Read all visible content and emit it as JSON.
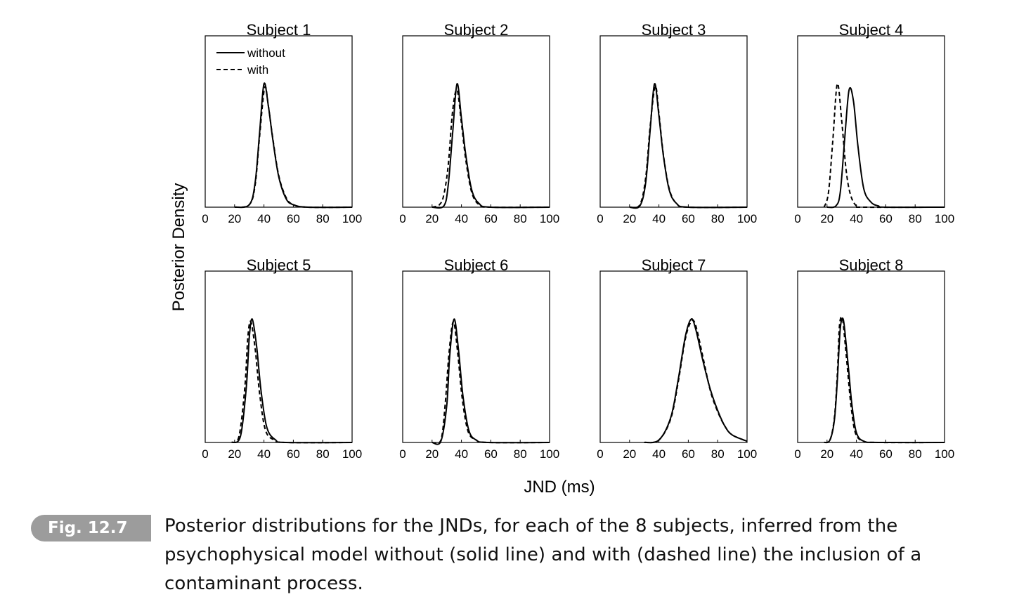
{
  "figure": {
    "ylabel": "Posterior Density",
    "xlabel": "JND (ms)"
  },
  "caption": {
    "tag": "Fig. 12.7",
    "text": "Posterior distributions for the JNDs, for each of the 8 subjects, inferred from the psychophysical model without (solid line) and with (dashed line) the inclusion of a contaminant process."
  },
  "colors": {
    "line": "#000000",
    "axis": "#000000",
    "tag_bg": "#9c9c9c"
  },
  "chart_data": {
    "type": "line",
    "xlim": [
      0,
      100
    ],
    "xticks": [
      0,
      20,
      40,
      60,
      80,
      100
    ],
    "grid": false,
    "legend": {
      "placement": "top-left",
      "panel": 0,
      "entries": [
        {
          "label": "without",
          "style": "solid"
        },
        {
          "label": "with",
          "style": "dashed"
        }
      ]
    },
    "series_styles": {
      "without": "solid",
      "with": "dashed"
    },
    "panels": [
      {
        "title": "Subject 1",
        "without": {
          "x": [
            20,
            30,
            34,
            37,
            40,
            43,
            46,
            50,
            55,
            60,
            70,
            100
          ],
          "y": [
            0,
            0.02,
            0.2,
            0.6,
            1.0,
            0.82,
            0.55,
            0.25,
            0.07,
            0.02,
            0,
            0
          ]
        },
        "with": {
          "x": [
            20,
            30,
            34,
            37,
            40.5,
            43,
            46,
            50,
            55,
            60,
            70,
            100
          ],
          "y": [
            0,
            0.02,
            0.18,
            0.57,
            0.97,
            0.82,
            0.56,
            0.26,
            0.08,
            0.02,
            0,
            0
          ]
        }
      },
      {
        "title": "Subject 2",
        "without": {
          "x": [
            20,
            28,
            31,
            34,
            37,
            40,
            43,
            47,
            52,
            60,
            100
          ],
          "y": [
            0,
            0.01,
            0.18,
            0.6,
            1.0,
            0.72,
            0.42,
            0.14,
            0.03,
            0,
            0
          ]
        },
        "with": {
          "x": [
            20,
            25,
            28,
            31,
            34,
            37,
            40,
            43,
            47,
            52,
            60,
            100
          ],
          "y": [
            0,
            0.02,
            0.1,
            0.34,
            0.78,
            0.95,
            0.68,
            0.38,
            0.12,
            0.02,
            0,
            0
          ]
        }
      },
      {
        "title": "Subject 3",
        "without": {
          "x": [
            20,
            27,
            31,
            34,
            37,
            40,
            43,
            47,
            52,
            60,
            100
          ],
          "y": [
            0,
            0.01,
            0.2,
            0.62,
            1.0,
            0.74,
            0.42,
            0.14,
            0.03,
            0,
            0
          ]
        },
        "with": {
          "x": [
            20,
            27,
            31,
            34,
            37.5,
            40,
            43,
            47,
            52,
            60,
            100
          ],
          "y": [
            0,
            0.02,
            0.24,
            0.65,
            0.98,
            0.76,
            0.43,
            0.15,
            0.03,
            0,
            0
          ]
        }
      },
      {
        "title": "Subject 4",
        "without": {
          "x": [
            20,
            26,
            29,
            32,
            35,
            38,
            41,
            45,
            50,
            55,
            60,
            100
          ],
          "y": [
            0,
            0.01,
            0.12,
            0.55,
            0.95,
            0.86,
            0.5,
            0.15,
            0.04,
            0.01,
            0,
            0
          ]
        },
        "with": {
          "x": [
            18,
            21,
            24,
            27,
            30,
            33,
            36,
            40,
            45,
            100
          ],
          "y": [
            0,
            0.12,
            0.55,
            1.0,
            0.7,
            0.3,
            0.1,
            0.01,
            0,
            0
          ]
        }
      },
      {
        "title": "Subject 5",
        "without": {
          "x": [
            18,
            24,
            28,
            30,
            32,
            35,
            38,
            42,
            48,
            55,
            100
          ],
          "y": [
            0,
            0.05,
            0.45,
            0.85,
            1.0,
            0.78,
            0.42,
            0.12,
            0.02,
            0,
            0
          ]
        },
        "with": {
          "x": [
            18,
            23,
            27,
            29,
            31,
            34,
            37,
            41,
            47,
            55,
            100
          ],
          "y": [
            0,
            0.05,
            0.45,
            0.85,
            0.98,
            0.76,
            0.4,
            0.1,
            0.02,
            0,
            0
          ]
        }
      },
      {
        "title": "Subject 6",
        "without": {
          "x": [
            20,
            26,
            30,
            32,
            35,
            38,
            41,
            45,
            50,
            58,
            100
          ],
          "y": [
            0,
            0.01,
            0.3,
            0.7,
            1.0,
            0.75,
            0.38,
            0.1,
            0.02,
            0,
            0
          ]
        },
        "with": {
          "x": [
            20,
            26,
            29,
            31.5,
            34.5,
            37.5,
            40.5,
            44.5,
            50,
            58,
            100
          ],
          "y": [
            0,
            0.02,
            0.32,
            0.72,
            0.98,
            0.72,
            0.36,
            0.09,
            0.02,
            0,
            0
          ]
        }
      },
      {
        "title": "Subject 7",
        "without": {
          "x": [
            30,
            40,
            48,
            53,
            58,
            62,
            65,
            70,
            75,
            80,
            85,
            90,
            100
          ],
          "y": [
            0,
            0.02,
            0.2,
            0.5,
            0.86,
            1.0,
            0.92,
            0.66,
            0.43,
            0.26,
            0.13,
            0.06,
            0.01
          ]
        },
        "with": {
          "x": [
            30,
            40,
            48,
            53,
            58,
            62,
            65,
            70,
            75,
            80,
            85,
            90,
            100
          ],
          "y": [
            0,
            0.02,
            0.19,
            0.48,
            0.84,
            0.98,
            0.95,
            0.69,
            0.42,
            0.25,
            0.13,
            0.06,
            0.01
          ]
        }
      },
      {
        "title": "Subject 8",
        "without": {
          "x": [
            18,
            22,
            25,
            27,
            29,
            31,
            33,
            35,
            37,
            40,
            45,
            55,
            100
          ],
          "y": [
            0,
            0.02,
            0.18,
            0.5,
            0.92,
            1.0,
            0.8,
            0.55,
            0.3,
            0.08,
            0.01,
            0,
            0
          ]
        },
        "with": {
          "x": [
            18,
            22,
            25,
            27,
            28.5,
            30.5,
            32.5,
            34.5,
            36.5,
            39.5,
            45,
            55,
            100
          ],
          "y": [
            0,
            0.02,
            0.2,
            0.55,
            0.95,
            1.0,
            0.78,
            0.52,
            0.28,
            0.07,
            0.01,
            0,
            0
          ]
        }
      }
    ]
  }
}
